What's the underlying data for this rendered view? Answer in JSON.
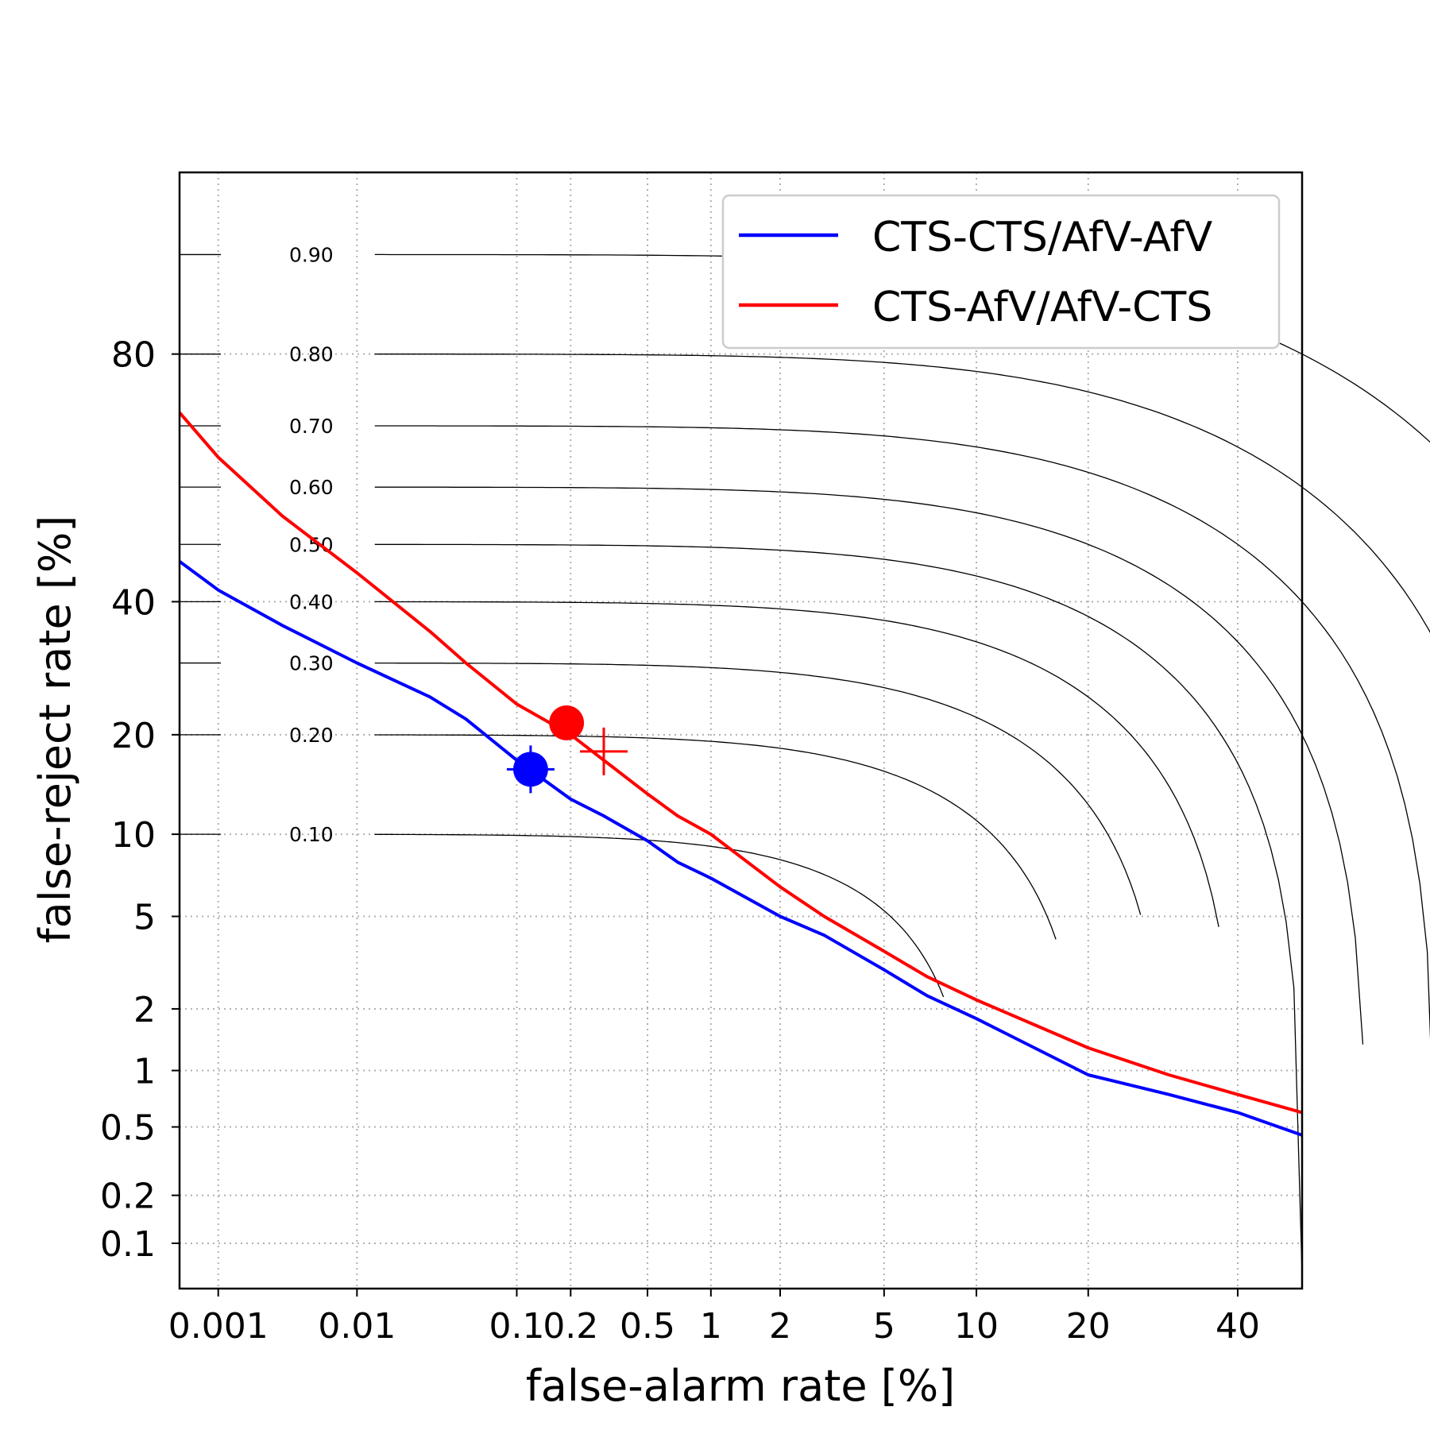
{
  "chart_data": {
    "type": "line",
    "xlabel": "false-alarm rate [%]",
    "ylabel": "false-reject rate [%]",
    "xscale": "probit",
    "yscale": "probit",
    "xlim": [
      0.0005,
      50
    ],
    "ylim": [
      0.05,
      95
    ],
    "grid": true,
    "legend_position": "top-right",
    "x_ticks": [
      {
        "value": 0.001,
        "label": "0.001"
      },
      {
        "value": 0.01,
        "label": "0.01"
      },
      {
        "value": 0.1,
        "label": "0.1"
      },
      {
        "value": 0.2,
        "label": "0.2"
      },
      {
        "value": 0.5,
        "label": "0.5"
      },
      {
        "value": 1,
        "label": "1"
      },
      {
        "value": 2,
        "label": "2"
      },
      {
        "value": 5,
        "label": "5"
      },
      {
        "value": 10,
        "label": "10"
      },
      {
        "value": 20,
        "label": "20"
      },
      {
        "value": 40,
        "label": "40"
      }
    ],
    "y_ticks": [
      {
        "value": 0.1,
        "label": "0.1"
      },
      {
        "value": 0.2,
        "label": "0.2"
      },
      {
        "value": 0.5,
        "label": "0.5"
      },
      {
        "value": 1,
        "label": "1"
      },
      {
        "value": 2,
        "label": "2"
      },
      {
        "value": 5,
        "label": "5"
      },
      {
        "value": 10,
        "label": "10"
      },
      {
        "value": 20,
        "label": "20"
      },
      {
        "value": 40,
        "label": "40"
      },
      {
        "value": 80,
        "label": "80"
      }
    ],
    "series": [
      {
        "name": "CTS-CTS/AfV-AfV",
        "color": "#0000ff",
        "x": [
          0.0005,
          0.001,
          0.003,
          0.01,
          0.03,
          0.05,
          0.1,
          0.2,
          0.3,
          0.5,
          0.7,
          1,
          2,
          3,
          5,
          7,
          10,
          20,
          30,
          40,
          50
        ],
        "y": [
          47,
          42,
          36,
          30,
          25,
          22,
          17,
          13,
          11.5,
          9.5,
          8,
          7,
          5,
          4.2,
          3,
          2.3,
          1.8,
          0.95,
          0.75,
          0.6,
          0.45
        ],
        "marker": {
          "x": 0.12,
          "y": 16
        }
      },
      {
        "name": "CTS-AfV/AfV-CTS",
        "color": "#ff0000",
        "x": [
          0.0005,
          0.001,
          0.003,
          0.01,
          0.03,
          0.05,
          0.1,
          0.2,
          0.3,
          0.5,
          0.7,
          1,
          2,
          3,
          5,
          7,
          10,
          20,
          30,
          40,
          50
        ],
        "y": [
          72,
          65,
          55,
          45,
          35,
          30,
          24,
          20,
          17,
          13.5,
          11.5,
          10,
          6.5,
          5,
          3.6,
          2.8,
          2.2,
          1.3,
          0.95,
          0.75,
          0.6
        ],
        "marker": {
          "x": 0.19,
          "y": 21.5
        },
        "cross": {
          "x": 0.3,
          "y": 18
        }
      }
    ],
    "iso_curves": [
      {
        "label": "0.10",
        "value": 0.1
      },
      {
        "label": "0.20",
        "value": 0.2
      },
      {
        "label": "0.30",
        "value": 0.3
      },
      {
        "label": "0.40",
        "value": 0.4
      },
      {
        "label": "0.50",
        "value": 0.5
      },
      {
        "label": "0.60",
        "value": 0.6
      },
      {
        "label": "0.70",
        "value": 0.7
      },
      {
        "label": "0.80",
        "value": 0.8
      },
      {
        "label": "0.90",
        "value": 0.9
      }
    ]
  }
}
